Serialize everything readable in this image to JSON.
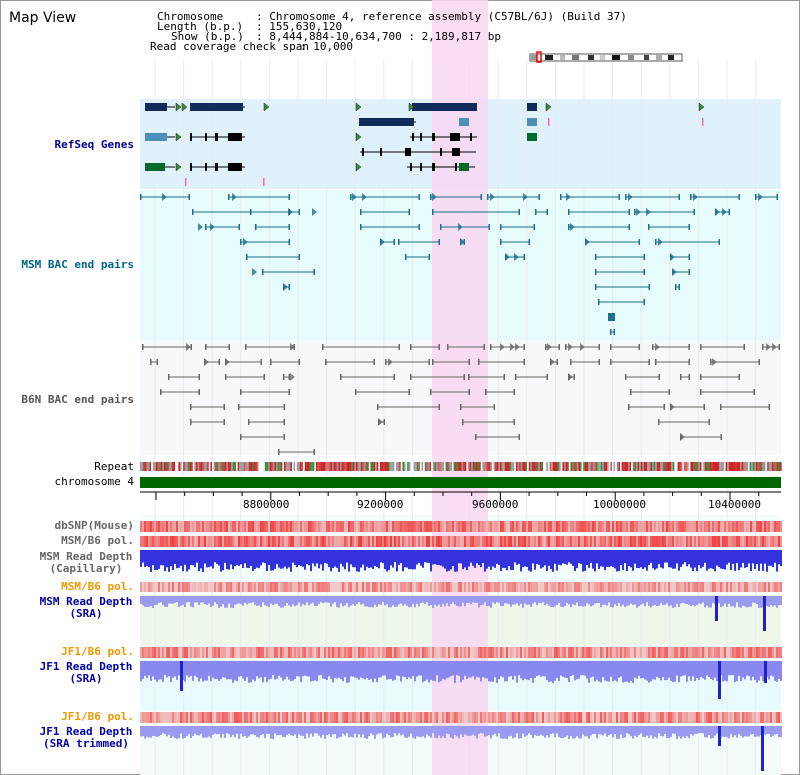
{
  "view": {
    "title": "Map View"
  },
  "info": {
    "chromosome_key": "Chromosome",
    "chromosome_value": ": Chromosome 4, reference assembly (C57BL/6J) (Build 37)",
    "length_key": "Length (b.p.)",
    "length_value": ": 155,630,120",
    "show_key": "Show (b.p.)",
    "show_value": ": 8,444,884-10,634,700 : 2,189,817 bp",
    "coverage_key": "Read coverage check span",
    "coverage_value": ": 10,000"
  },
  "tracks": {
    "refseq": "RefSeq Genes",
    "msm_bac": "MSM BAC end pairs",
    "b6n_bac": "B6N BAC end pairs",
    "repeat": "Repeat",
    "chromosome": "chromosome 4",
    "dbsnp": "dbSNP(Mouse)",
    "msm_b6_pol_1": "MSM/B6 pol.",
    "msm_read_depth_cap_1": "MSM Read Depth",
    "msm_read_depth_cap_2": "(Capillary)",
    "msm_b6_pol_2": "MSM/B6 pol.",
    "msm_read_depth_sra_1": "MSM Read Depth",
    "msm_read_depth_sra_2": "(SRA)",
    "jf1_b6_pol_1": "JF1/B6 pol.",
    "jf1_read_depth_1": "JF1 Read Depth",
    "jf1_read_depth_2": "(SRA)",
    "jf1_b6_pol_2": "JF1/B6 pol.",
    "jf1_read_depth_trim_1": "JF1 Read Depth",
    "jf1_read_depth_trim_2": "(SRA trimmed)"
  },
  "axis": {
    "ticks": [
      "8800000",
      "9200000",
      "9600000",
      "10000000",
      "10400000"
    ]
  },
  "colors": {
    "refseq_bg": "#dff2fb",
    "msm_bg": "#e6fbfb",
    "b6n_bg": "#f6f9fb",
    "highlight": "#f9d7f1",
    "chromosome_bar": "#006600",
    "refseq_label": "#000099",
    "msm_label": "#006688",
    "b6n_label": "#555555",
    "pol_label": "#ee9900",
    "depth_label": "#0000aa",
    "gray_label": "#666666"
  }
}
